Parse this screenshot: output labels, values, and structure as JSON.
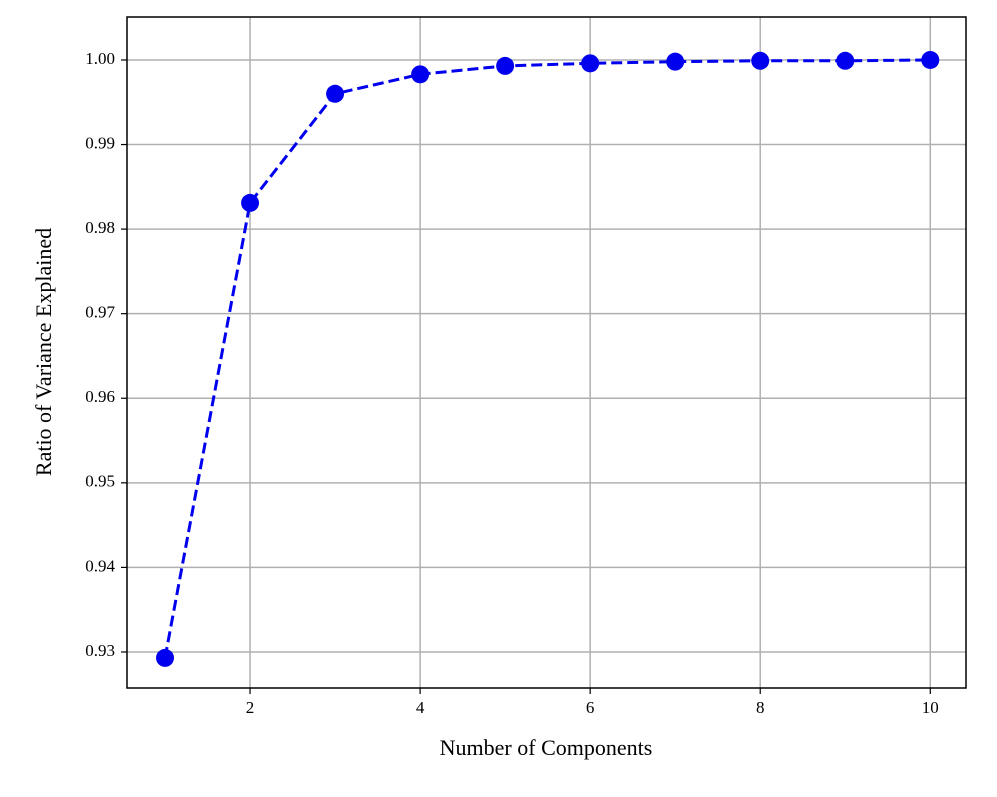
{
  "chart_data": {
    "type": "line",
    "xlabel": "Number of Components",
    "ylabel": "Ratio of Variance Explained",
    "x": [
      1,
      2,
      3,
      4,
      5,
      6,
      7,
      8,
      9,
      10
    ],
    "values": [
      0.9293,
      0.9831,
      0.996,
      0.9983,
      0.9993,
      0.9996,
      0.9998,
      0.9999,
      0.9999,
      1.0
    ],
    "color": "#0000ee",
    "linestyle": "dashed",
    "xlim": [
      0.553,
      10.42
    ],
    "ylim": [
      0.92574,
      1.00508
    ],
    "xticks": [
      2,
      4,
      6,
      8,
      10
    ],
    "yticks": [
      0.93,
      0.94,
      0.95,
      0.96,
      0.97,
      0.98,
      0.99,
      {
        "value": 1,
        "label": "1.00"
      }
    ],
    "grid": true
  }
}
